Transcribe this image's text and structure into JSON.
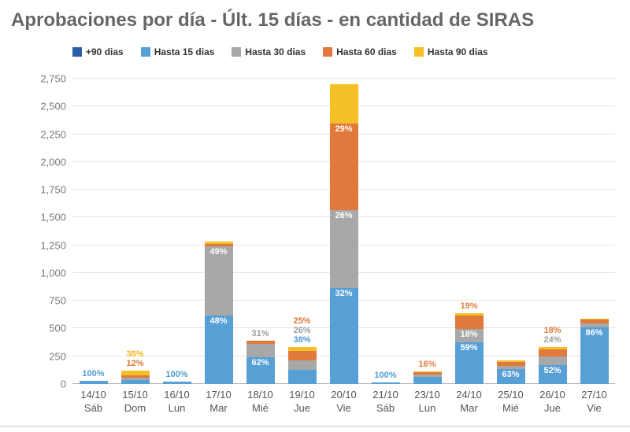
{
  "chart_data": {
    "type": "bar",
    "stacked": true,
    "title": "Aprobaciones por día - Últ. 15 días - en cantidad de SIRAS",
    "ylabel": "",
    "xlabel": "",
    "ylim": [
      0,
      2750
    ],
    "ytick_step": 250,
    "ytick_labels": [
      "0",
      "250",
      "500",
      "750",
      "1,000",
      "1,250",
      "1,500",
      "1,750",
      "2,000",
      "2,250",
      "2,500",
      "2,750"
    ],
    "grid": true,
    "legend_position": "top",
    "legend": [
      {
        "name": "+90 dias",
        "color": "#2d5da9"
      },
      {
        "name": "Hasta 15 dias",
        "color": "#56a0d6"
      },
      {
        "name": "Hasta 30 dias",
        "color": "#a8a8a8"
      },
      {
        "name": "Hasta 60 dias",
        "color": "#e0793b"
      },
      {
        "name": "Hasta 90 dias",
        "color": "#f5c026"
      }
    ],
    "series_keys": [
      "plus90",
      "d15",
      "d30",
      "d60",
      "d90"
    ],
    "label_colors": {
      "blue": "#4d9bd3",
      "gray": "#9e9e9e",
      "orange": "#e0793b",
      "yellow": "#f0b616"
    },
    "bars": [
      {
        "date": "14/10",
        "day": "Sáb",
        "values": {
          "plus90": 0,
          "d15": 25,
          "d30": 0,
          "d60": 0,
          "d90": 0
        },
        "inside_labels": {},
        "outside_labels": [
          {
            "text": "100%",
            "color": "#4d9bd3"
          }
        ]
      },
      {
        "date": "15/10",
        "day": "Dom",
        "values": {
          "plus90": 0,
          "d15": 35,
          "d30": 25,
          "d60": 15,
          "d90": 45
        },
        "inside_labels": {},
        "outside_labels": [
          {
            "text": "38%",
            "color": "#f0b616"
          },
          {
            "text": "12%",
            "color": "#e0793b"
          }
        ]
      },
      {
        "date": "16/10",
        "day": "Lun",
        "values": {
          "plus90": 0,
          "d15": 18,
          "d30": 0,
          "d60": 0,
          "d90": 0
        },
        "inside_labels": {},
        "outside_labels": [
          {
            "text": "100%",
            "color": "#4d9bd3"
          }
        ]
      },
      {
        "date": "17/10",
        "day": "Mar",
        "values": {
          "plus90": 0,
          "d15": 615,
          "d30": 625,
          "d60": 25,
          "d90": 15
        },
        "inside_labels": {
          "d15": "48%",
          "d30": "49%"
        },
        "outside_labels": []
      },
      {
        "date": "18/10",
        "day": "Mié",
        "values": {
          "plus90": 0,
          "d15": 242,
          "d30": 121,
          "d60": 24,
          "d90": 5
        },
        "inside_labels": {
          "d15": "62%"
        },
        "outside_labels": [
          {
            "text": "31%",
            "color": "#9e9e9e"
          }
        ]
      },
      {
        "date": "19/10",
        "day": "Jue",
        "values": {
          "plus90": 0,
          "d15": 127,
          "d30": 87,
          "d60": 84,
          "d90": 36
        },
        "inside_labels": {},
        "outside_labels": [
          {
            "text": "25%",
            "color": "#e0793b"
          },
          {
            "text": "26%",
            "color": "#9e9e9e"
          },
          {
            "text": "38%",
            "color": "#4d9bd3"
          }
        ]
      },
      {
        "date": "20/10",
        "day": "Vie",
        "values": {
          "plus90": 0,
          "d15": 864,
          "d30": 702,
          "d60": 783,
          "d90": 351
        },
        "inside_labels": {
          "d15": "32%",
          "d30": "26%",
          "d60": "29%"
        },
        "outside_labels": []
      },
      {
        "date": "21/10",
        "day": "Sáb",
        "values": {
          "plus90": 0,
          "d15": 15,
          "d30": 0,
          "d60": 0,
          "d90": 0
        },
        "inside_labels": {},
        "outside_labels": [
          {
            "text": "100%",
            "color": "#4d9bd3"
          }
        ]
      },
      {
        "date": "23/10",
        "day": "Lun",
        "values": {
          "plus90": 0,
          "d15": 63,
          "d30": 23,
          "d60": 18,
          "d90": 11
        },
        "inside_labels": {},
        "outside_labels": [
          {
            "text": "16%",
            "color": "#e0793b"
          }
        ]
      },
      {
        "date": "24/10",
        "day": "Mar",
        "values": {
          "plus90": 0,
          "d15": 378,
          "d30": 115,
          "d60": 122,
          "d90": 25
        },
        "inside_labels": {
          "d15": "59%",
          "d30": "18%"
        },
        "outside_labels": [
          {
            "text": "19%",
            "color": "#e0793b"
          }
        ]
      },
      {
        "date": "25/10",
        "day": "Mié",
        "values": {
          "plus90": 0,
          "d15": 132,
          "d30": 32,
          "d60": 36,
          "d90": 10
        },
        "inside_labels": {
          "d15": "63%"
        },
        "outside_labels": []
      },
      {
        "date": "26/10",
        "day": "Jue",
        "values": {
          "plus90": 0,
          "d15": 172,
          "d30": 79,
          "d60": 59,
          "d90": 20
        },
        "inside_labels": {
          "d15": "52%"
        },
        "outside_labels": [
          {
            "text": "18%",
            "color": "#e0793b"
          },
          {
            "text": "24%",
            "color": "#9e9e9e"
          }
        ]
      },
      {
        "date": "27/10",
        "day": "Vie",
        "values": {
          "plus90": 0,
          "d15": 507,
          "d30": 41,
          "d60": 30,
          "d90": 12
        },
        "inside_labels": {
          "d15": "86%"
        },
        "outside_labels": []
      }
    ]
  }
}
